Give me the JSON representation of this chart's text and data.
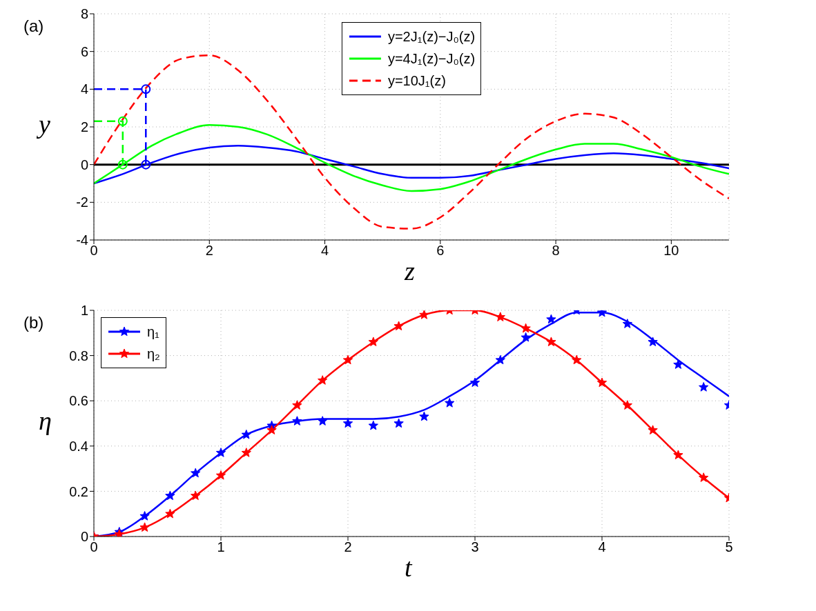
{
  "chart_data": [
    {
      "type": "line",
      "annotations": [
        "(a)"
      ],
      "xlabel": "z",
      "ylabel": "y",
      "xlim": [
        0,
        11
      ],
      "xticks": [
        0,
        2,
        4,
        6,
        8,
        10
      ],
      "ylim": [
        -4,
        8
      ],
      "yticks": [
        -4,
        -2,
        0,
        2,
        4,
        6,
        8
      ],
      "grid": true,
      "legend": "top",
      "x": [
        0,
        0.5,
        1,
        1.5,
        2,
        2.5,
        3,
        3.5,
        4,
        4.5,
        5,
        5.5,
        6,
        6.5,
        7,
        7.5,
        8,
        8.5,
        9,
        9.5,
        10,
        10.5,
        11
      ],
      "ref_lines": [
        {
          "axis": "y",
          "value": 0,
          "color": "#000000"
        }
      ],
      "series": [
        {
          "name": "y=2J₁(z)−J₀(z)",
          "color": "#0000ff",
          "line_style": "solid",
          "values": [
            -1,
            -0.5,
            0.1,
            0.6,
            0.9,
            1.0,
            0.9,
            0.7,
            0.3,
            -0.1,
            -0.5,
            -0.7,
            -0.7,
            -0.6,
            -0.3,
            0,
            0.3,
            0.5,
            0.6,
            0.5,
            0.3,
            0.1,
            -0.2
          ]
        },
        {
          "name": "y=4J₁(z)−J₀(z)",
          "color": "#00ff00",
          "line_style": "solid",
          "values": [
            -1,
            0,
            1,
            1.7,
            2.1,
            2,
            1.6,
            0.9,
            0.1,
            -0.6,
            -1.1,
            -1.4,
            -1.3,
            -0.9,
            -0.3,
            0.3,
            0.8,
            1.1,
            1.1,
            0.8,
            0.4,
            -0.1,
            -0.5
          ]
        },
        {
          "name": "y=10J₁(z)",
          "color": "#ff0000",
          "line_style": "dashed",
          "values": [
            0,
            2.4,
            4.4,
            5.6,
            5.8,
            5,
            3.4,
            1.4,
            -0.7,
            -2.3,
            -3.3,
            -3.4,
            -2.8,
            -1.5,
            0,
            1.4,
            2.3,
            2.7,
            2.5,
            1.6,
            0.4,
            -0.8,
            -1.8
          ]
        },
        {
          "type": "line",
          "color": "#0000ff",
          "line_style": "dashed",
          "marker": "none",
          "x": [
            0,
            0.9,
            0.9
          ],
          "values": [
            4,
            4,
            0
          ]
        },
        {
          "type": "scatter",
          "color": "#0000ff",
          "marker": "circle",
          "x": [
            0.9,
            0.9
          ],
          "values": [
            4,
            0
          ]
        },
        {
          "type": "line",
          "color": "#00ff00",
          "line_style": "dashed",
          "marker": "none",
          "x": [
            0,
            0.5,
            0.5
          ],
          "values": [
            2.3,
            2.3,
            0
          ]
        },
        {
          "type": "scatter",
          "color": "#00ff00",
          "marker": "circle",
          "x": [
            0.5,
            0.5
          ],
          "values": [
            2.3,
            0
          ]
        }
      ]
    },
    {
      "type": "line",
      "annotations": [
        "(b)"
      ],
      "xlabel": "t",
      "ylabel": "η",
      "xlim": [
        0,
        5
      ],
      "xticks": [
        0,
        1,
        2,
        3,
        4,
        5
      ],
      "ylim": [
        0,
        1
      ],
      "yticks": [
        0,
        0.2,
        0.4,
        0.6,
        0.8,
        1
      ],
      "grid": true,
      "legend": "top left",
      "x": [
        0,
        0.2,
        0.4,
        0.6,
        0.8,
        1,
        1.2,
        1.4,
        1.6,
        1.8,
        2,
        2.2,
        2.4,
        2.6,
        2.8,
        3,
        3.2,
        3.4,
        3.6,
        3.8,
        4,
        4.2,
        4.4,
        4.6,
        4.8,
        5
      ],
      "series": [
        {
          "color": "#0000ff",
          "line_style": "solid",
          "marker": "none",
          "values": [
            0,
            0.02,
            0.09,
            0.18,
            0.28,
            0.37,
            0.45,
            0.49,
            0.51,
            0.52,
            0.52,
            0.52,
            0.53,
            0.56,
            0.62,
            0.69,
            0.78,
            0.87,
            0.94,
            0.99,
            0.99,
            0.95,
            0.87,
            0.78,
            0.7,
            0.62
          ]
        },
        {
          "type": "scatter",
          "name": "η₁",
          "color": "#0000ff",
          "marker": "star",
          "values": [
            0,
            0.02,
            0.09,
            0.18,
            0.28,
            0.37,
            0.45,
            0.49,
            0.51,
            0.51,
            0.5,
            0.49,
            0.5,
            0.53,
            0.59,
            0.68,
            0.78,
            0.88,
            0.96,
            1,
            0.99,
            0.94,
            0.86,
            0.76,
            0.66,
            0.58
          ]
        },
        {
          "name": "η₂",
          "color": "#ff0000",
          "line_style": "solid",
          "marker": "star",
          "values": [
            0,
            0.01,
            0.04,
            0.1,
            0.18,
            0.27,
            0.37,
            0.47,
            0.58,
            0.69,
            0.78,
            0.86,
            0.93,
            0.98,
            1,
            1,
            0.97,
            0.92,
            0.86,
            0.78,
            0.68,
            0.58,
            0.47,
            0.36,
            0.26,
            0.17
          ]
        }
      ]
    }
  ]
}
